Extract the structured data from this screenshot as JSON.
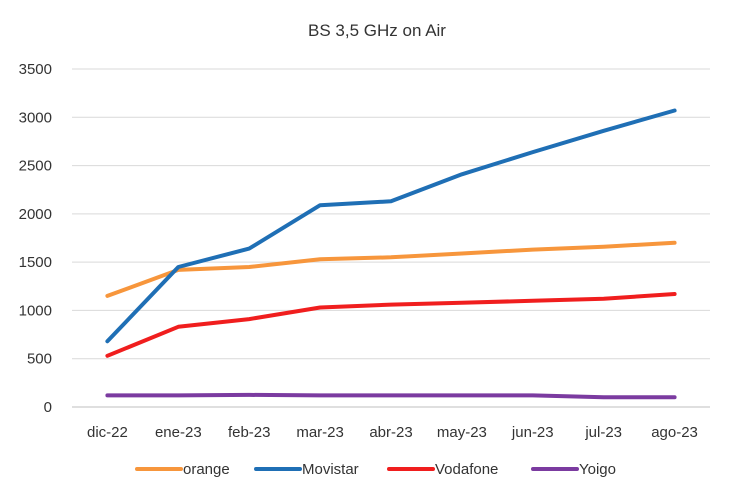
{
  "chart_data": {
    "type": "line",
    "title": "BS 3,5 GHz on Air",
    "xlabel": "",
    "ylabel": "",
    "categories": [
      "dic-22",
      "ene-23",
      "feb-23",
      "mar-23",
      "abr-23",
      "may-23",
      "jun-23",
      "jul-23",
      "ago-23"
    ],
    "ylim": [
      0,
      3500
    ],
    "yticks": [
      0,
      500,
      1000,
      1500,
      2000,
      2500,
      3000,
      3500
    ],
    "grid": true,
    "legend_position": "bottom",
    "series": [
      {
        "name": "orange",
        "color": "#F7963C",
        "values": [
          1150,
          1420,
          1450,
          1530,
          1550,
          1590,
          1630,
          1660,
          1700
        ]
      },
      {
        "name": "Movistar",
        "color": "#1F6FB5",
        "values": [
          680,
          1450,
          1640,
          2090,
          2130,
          2410,
          2640,
          2860,
          3070
        ]
      },
      {
        "name": "Vodafone",
        "color": "#F01E1E",
        "values": [
          530,
          830,
          910,
          1030,
          1060,
          1080,
          1100,
          1120,
          1170
        ]
      },
      {
        "name": "Yoigo",
        "color": "#7B3BA0",
        "values": [
          120,
          120,
          125,
          120,
          120,
          120,
          120,
          100,
          100
        ]
      }
    ]
  }
}
